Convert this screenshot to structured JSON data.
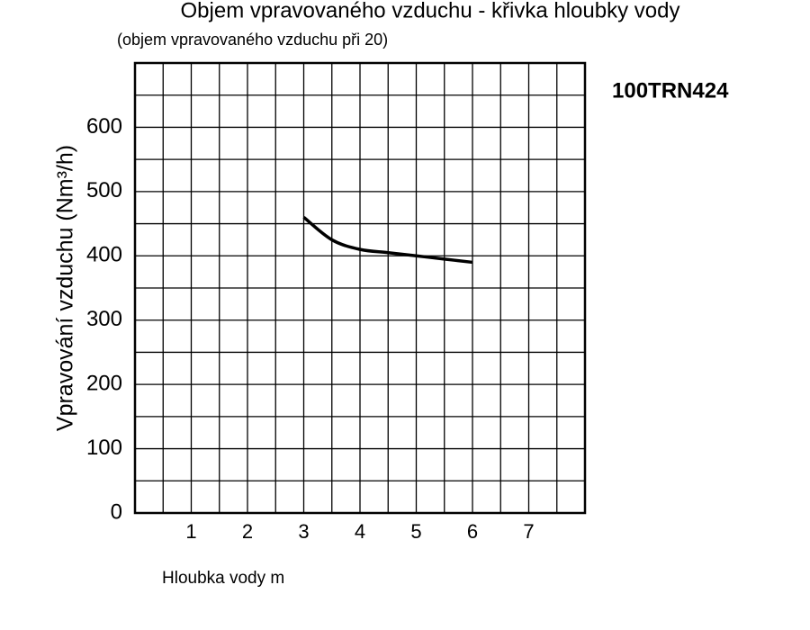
{
  "chart_data": {
    "type": "line",
    "title": "Objem vpravovaného vzduchu - křivka hloubky vody",
    "subtitle": "(objem vpravovaného vzduchu při 20)",
    "annotation": "100TRN424",
    "x_label": "Hloubka vody m",
    "y_label": "Vpravování vzduchu (Nm³/h)",
    "x": [
      3,
      3.5,
      4,
      4.5,
      5,
      5.5,
      6
    ],
    "values": [
      460,
      425,
      410,
      405,
      400,
      395,
      390
    ],
    "color": "#000000",
    "xlim": [
      0,
      8
    ],
    "xticks": [
      1,
      2,
      3,
      4,
      5,
      6,
      7
    ],
    "ylim": [
      0,
      700
    ],
    "yticks": [
      0,
      100,
      200,
      300,
      400,
      500,
      600
    ],
    "xgrid": [
      0.5,
      1,
      1.5,
      2,
      2.5,
      3,
      3.5,
      4,
      4.5,
      5,
      5.5,
      6,
      6.5,
      7,
      7.5
    ],
    "ygrid": [
      50,
      100,
      150,
      200,
      250,
      300,
      350,
      400,
      450,
      500,
      550,
      600,
      650
    ],
    "grid": true
  }
}
